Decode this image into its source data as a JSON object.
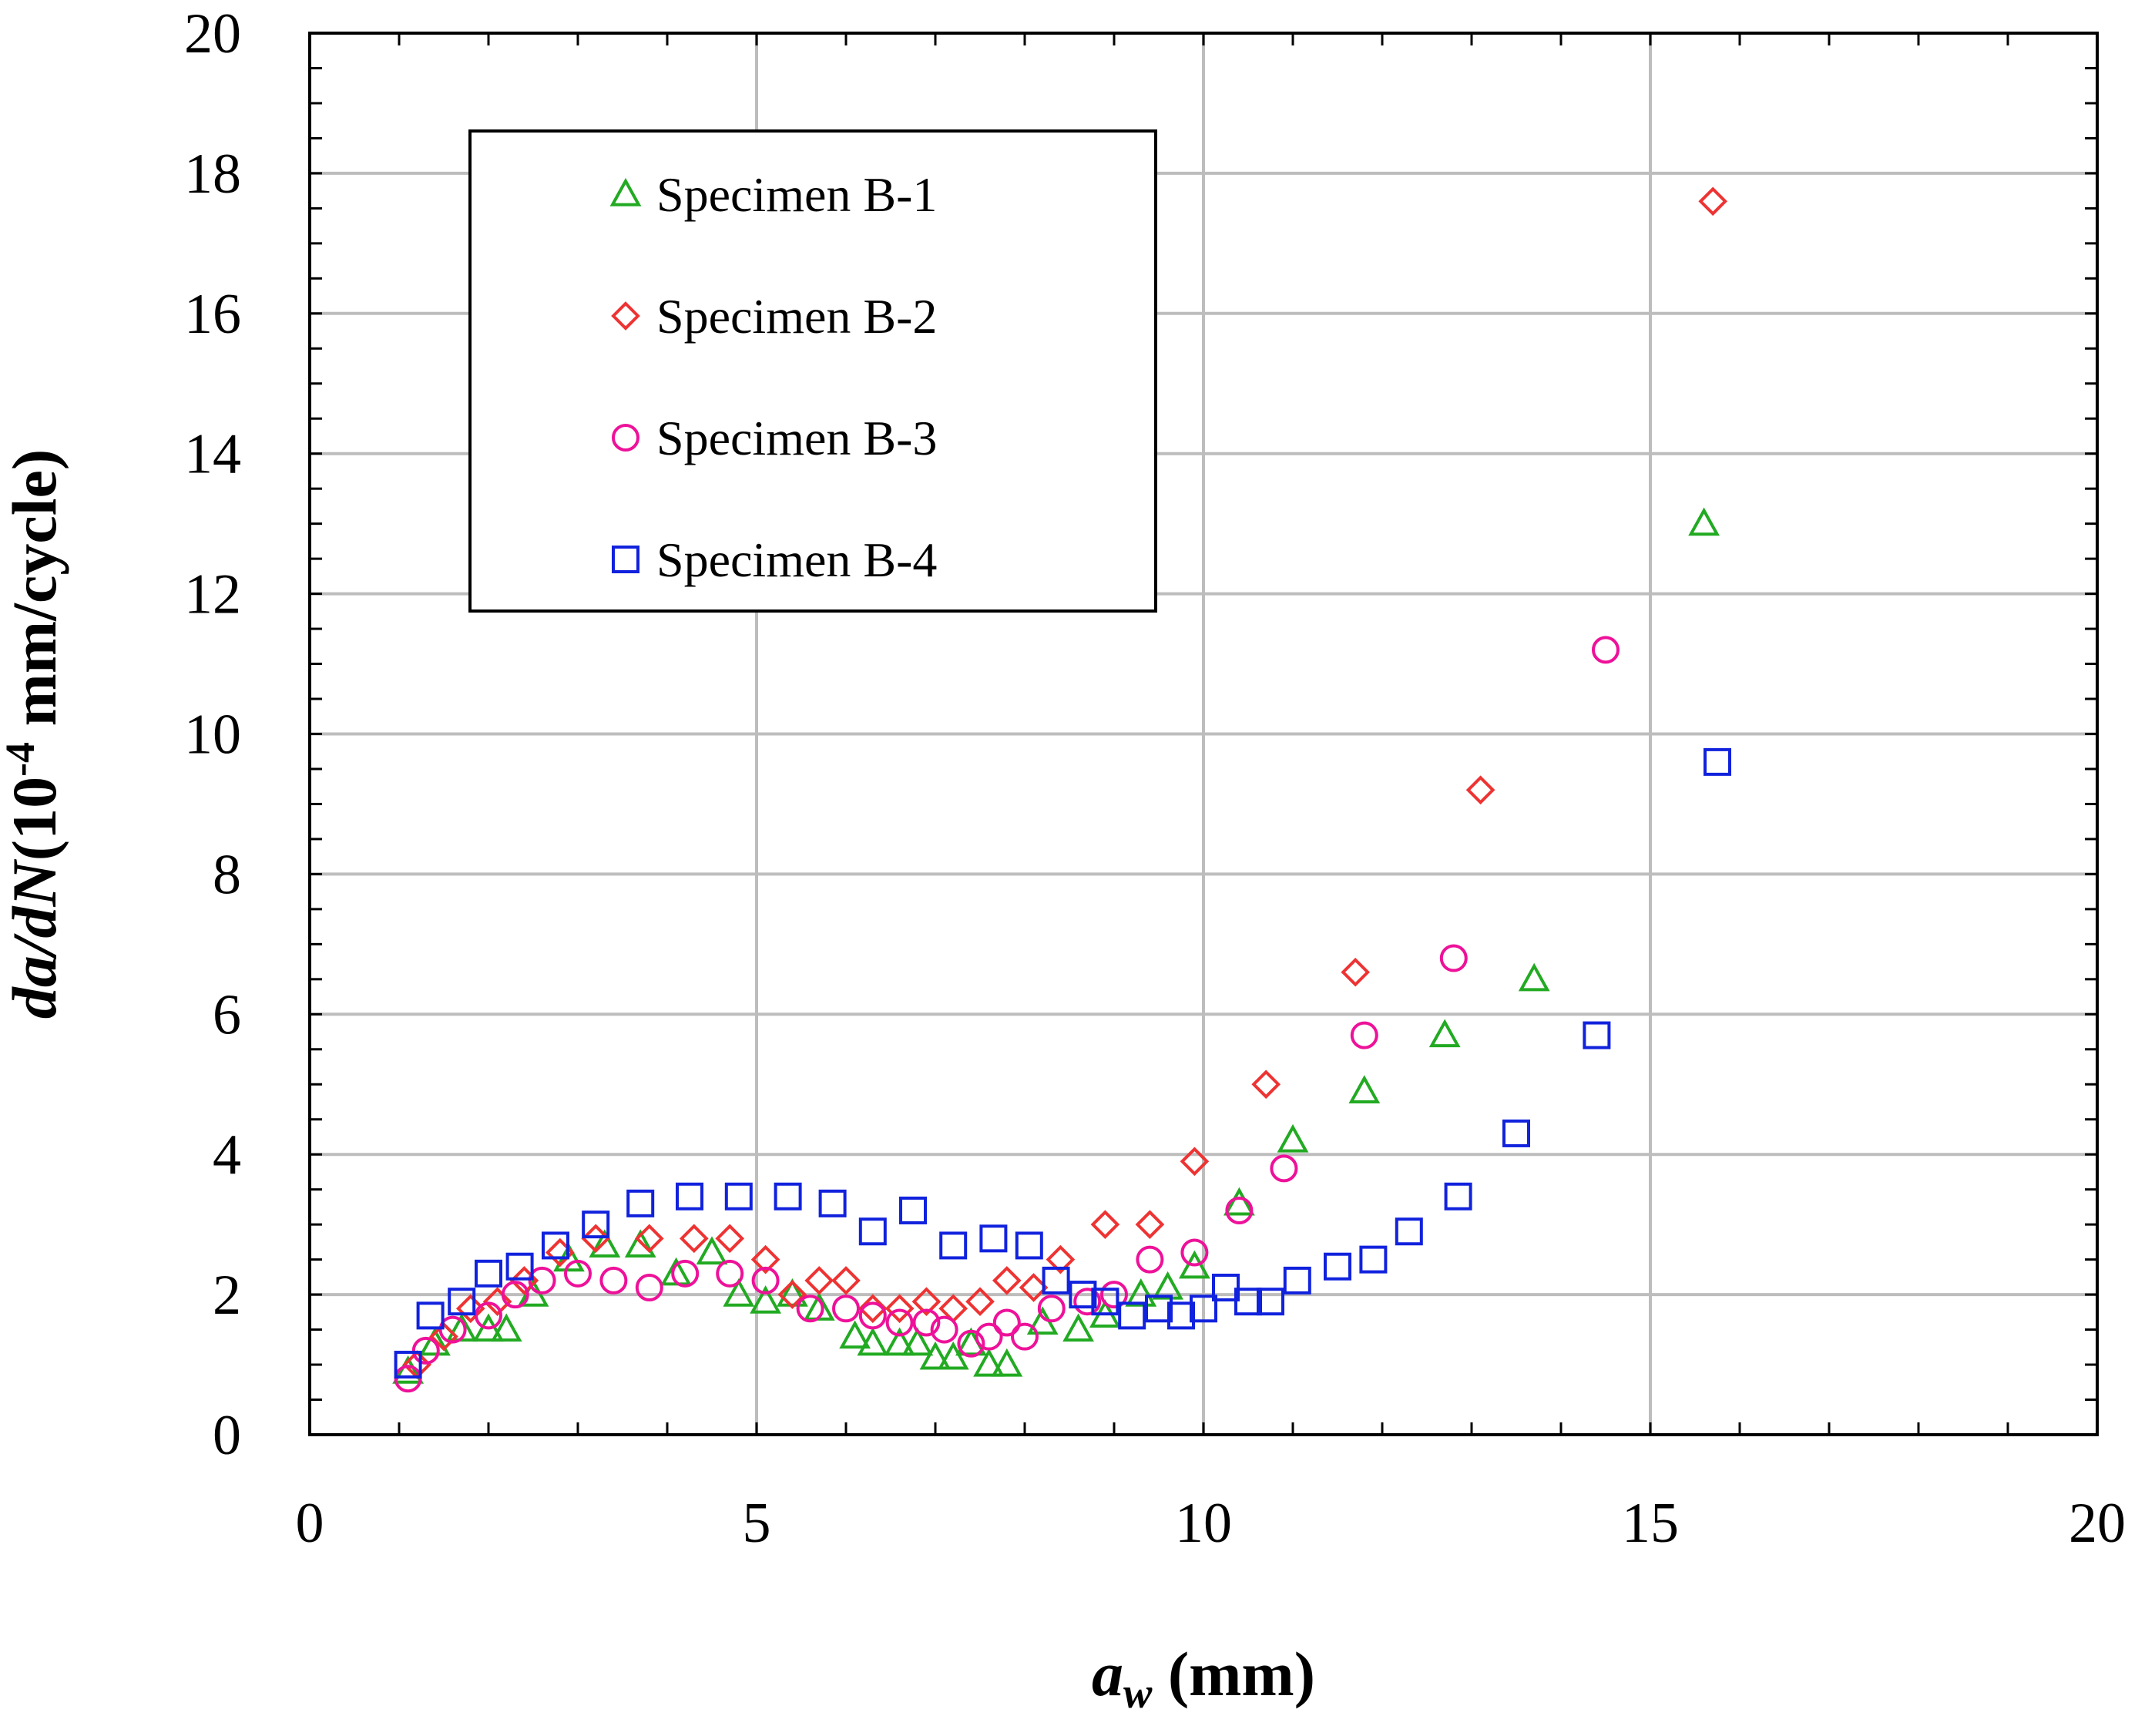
{
  "chart_data": {
    "type": "scatter",
    "xlabel": {
      "main": "a",
      "sub": "w",
      "unit": " (mm)"
    },
    "ylabel": {
      "prefix_italic": "da/dN",
      "lead": "(10",
      "exp": "-4",
      "tail": " mm/cycle)"
    },
    "xlim": [
      0,
      20
    ],
    "ylim": [
      0,
      20
    ],
    "xticks": [
      0,
      5,
      10,
      15,
      20
    ],
    "yticks": [
      0,
      2,
      4,
      6,
      8,
      10,
      12,
      14,
      16,
      18,
      20
    ],
    "grid": true,
    "legend_position": "top-left",
    "series": [
      {
        "name": "Specimen B-1",
        "marker": "triangle",
        "color": "#22aa22",
        "x": [
          1.1,
          1.4,
          1.7,
          2.0,
          2.2,
          2.5,
          2.9,
          3.3,
          3.7,
          4.1,
          4.5,
          4.8,
          5.1,
          5.4,
          5.7,
          6.1,
          6.3,
          6.6,
          6.8,
          7.0,
          7.2,
          7.4,
          7.6,
          7.8,
          8.2,
          8.6,
          8.9,
          9.3,
          9.6,
          9.9,
          10.4,
          11.0,
          11.8,
          12.7,
          13.7,
          15.6
        ],
        "y": [
          0.9,
          1.3,
          1.5,
          1.5,
          1.5,
          2.0,
          2.5,
          2.7,
          2.7,
          2.3,
          2.6,
          2.0,
          1.9,
          2.0,
          1.8,
          1.4,
          1.3,
          1.3,
          1.3,
          1.1,
          1.1,
          1.3,
          1.0,
          1.0,
          1.6,
          1.5,
          1.7,
          2.0,
          2.1,
          2.4,
          3.3,
          4.2,
          4.9,
          5.7,
          6.5,
          13.0
        ]
      },
      {
        "name": "Specimen B-2",
        "marker": "diamond",
        "color": "#ee3333",
        "x": [
          1.2,
          1.5,
          1.8,
          2.1,
          2.4,
          2.8,
          3.2,
          3.8,
          4.3,
          4.7,
          5.1,
          5.4,
          5.7,
          6.0,
          6.3,
          6.6,
          6.9,
          7.2,
          7.5,
          7.8,
          8.1,
          8.4,
          8.9,
          9.4,
          9.9,
          10.7,
          11.7,
          13.1,
          15.7
        ],
        "y": [
          1.0,
          1.4,
          1.8,
          1.9,
          2.2,
          2.6,
          2.8,
          2.8,
          2.8,
          2.8,
          2.5,
          2.0,
          2.2,
          2.2,
          1.8,
          1.8,
          1.9,
          1.8,
          1.9,
          2.2,
          2.1,
          2.5,
          3.0,
          3.0,
          3.9,
          5.0,
          6.6,
          9.2,
          17.6
        ]
      },
      {
        "name": "Specimen B-3",
        "marker": "circle",
        "color": "#ee1199",
        "x": [
          1.1,
          1.3,
          1.6,
          2.0,
          2.3,
          2.6,
          3.0,
          3.4,
          3.8,
          4.2,
          4.7,
          5.1,
          5.6,
          6.0,
          6.3,
          6.6,
          6.9,
          7.1,
          7.4,
          7.6,
          7.8,
          8.0,
          8.3,
          8.7,
          9.0,
          9.4,
          9.9,
          10.4,
          10.9,
          11.8,
          12.8,
          14.5
        ],
        "y": [
          0.8,
          1.2,
          1.5,
          1.7,
          2.0,
          2.2,
          2.3,
          2.2,
          2.1,
          2.3,
          2.3,
          2.2,
          1.8,
          1.8,
          1.7,
          1.6,
          1.6,
          1.5,
          1.3,
          1.4,
          1.6,
          1.4,
          1.8,
          1.9,
          2.0,
          2.5,
          2.6,
          3.2,
          3.8,
          5.7,
          6.8,
          11.2
        ]
      },
      {
        "name": "Specimen B-4",
        "marker": "square",
        "color": "#1122dd",
        "x": [
          1.1,
          1.35,
          1.7,
          2.0,
          2.35,
          2.75,
          3.2,
          3.7,
          4.25,
          4.8,
          5.35,
          5.85,
          6.3,
          6.75,
          7.2,
          7.65,
          8.05,
          8.35,
          8.65,
          8.9,
          9.2,
          9.5,
          9.75,
          10.0,
          10.25,
          10.5,
          10.75,
          11.05,
          11.5,
          11.9,
          12.3,
          12.85,
          13.5,
          14.4,
          15.75
        ],
        "y": [
          1.0,
          1.7,
          1.9,
          2.3,
          2.4,
          2.7,
          3.0,
          3.3,
          3.4,
          3.4,
          3.4,
          3.3,
          2.9,
          3.2,
          2.7,
          2.8,
          2.7,
          2.2,
          2.0,
          1.9,
          1.7,
          1.8,
          1.7,
          1.8,
          2.1,
          1.9,
          1.9,
          2.2,
          2.4,
          2.5,
          2.9,
          3.4,
          4.3,
          5.7,
          9.6
        ]
      }
    ]
  }
}
